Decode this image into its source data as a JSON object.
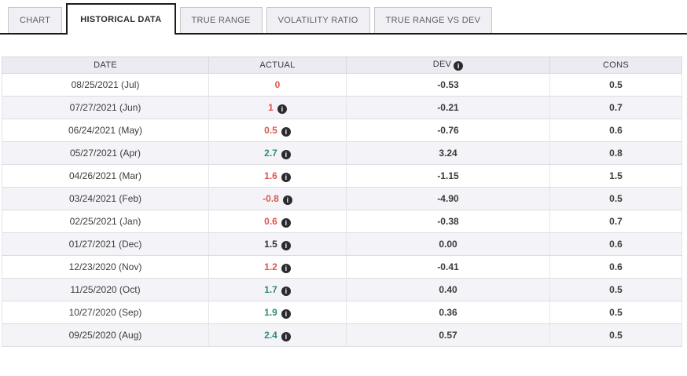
{
  "tabs": [
    {
      "id": "chart",
      "label": "CHART",
      "active": false
    },
    {
      "id": "historical-data",
      "label": "HISTORICAL DATA",
      "active": true
    },
    {
      "id": "true-range",
      "label": "TRUE RANGE",
      "active": false
    },
    {
      "id": "volatility-ratio",
      "label": "VOLATILITY RATIO",
      "active": false
    },
    {
      "id": "true-range-vs-dev",
      "label": "TRUE RANGE VS DEV",
      "active": false
    }
  ],
  "icons": {
    "info": "i"
  },
  "colors": {
    "negative_red": "#e05549",
    "positive_green": "#2e8b74",
    "neutral_dark": "#333333",
    "active_tab_border": "#1b1b1e"
  },
  "table": {
    "columns": {
      "date": "DATE",
      "actual": "ACTUAL",
      "dev": "DEV",
      "cons": "CONS"
    },
    "dev_header_has_info_icon": true,
    "rows": [
      {
        "date": "08/25/2021 (Jul)",
        "actual": "0",
        "actual_color": "red",
        "actual_has_info": false,
        "dev": "-0.53",
        "cons": "0.5"
      },
      {
        "date": "07/27/2021 (Jun)",
        "actual": "1",
        "actual_color": "red",
        "actual_has_info": true,
        "dev": "-0.21",
        "cons": "0.7"
      },
      {
        "date": "06/24/2021 (May)",
        "actual": "0.5",
        "actual_color": "red",
        "actual_has_info": true,
        "dev": "-0.76",
        "cons": "0.6"
      },
      {
        "date": "05/27/2021 (Apr)",
        "actual": "2.7",
        "actual_color": "green",
        "actual_has_info": true,
        "dev": "3.24",
        "cons": "0.8"
      },
      {
        "date": "04/26/2021 (Mar)",
        "actual": "1.6",
        "actual_color": "red",
        "actual_has_info": true,
        "dev": "-1.15",
        "cons": "1.5"
      },
      {
        "date": "03/24/2021 (Feb)",
        "actual": "-0.8",
        "actual_color": "red",
        "actual_has_info": true,
        "dev": "-4.90",
        "cons": "0.5"
      },
      {
        "date": "02/25/2021 (Jan)",
        "actual": "0.6",
        "actual_color": "red",
        "actual_has_info": true,
        "dev": "-0.38",
        "cons": "0.7"
      },
      {
        "date": "01/27/2021 (Dec)",
        "actual": "1.5",
        "actual_color": "dark",
        "actual_has_info": true,
        "dev": "0.00",
        "cons": "0.6"
      },
      {
        "date": "12/23/2020 (Nov)",
        "actual": "1.2",
        "actual_color": "red",
        "actual_has_info": true,
        "dev": "-0.41",
        "cons": "0.6"
      },
      {
        "date": "11/25/2020 (Oct)",
        "actual": "1.7",
        "actual_color": "green",
        "actual_has_info": true,
        "dev": "0.40",
        "cons": "0.5"
      },
      {
        "date": "10/27/2020 (Sep)",
        "actual": "1.9",
        "actual_color": "green",
        "actual_has_info": true,
        "dev": "0.36",
        "cons": "0.5"
      },
      {
        "date": "09/25/2020 (Aug)",
        "actual": "2.4",
        "actual_color": "green",
        "actual_has_info": true,
        "dev": "0.57",
        "cons": "0.5"
      }
    ]
  }
}
